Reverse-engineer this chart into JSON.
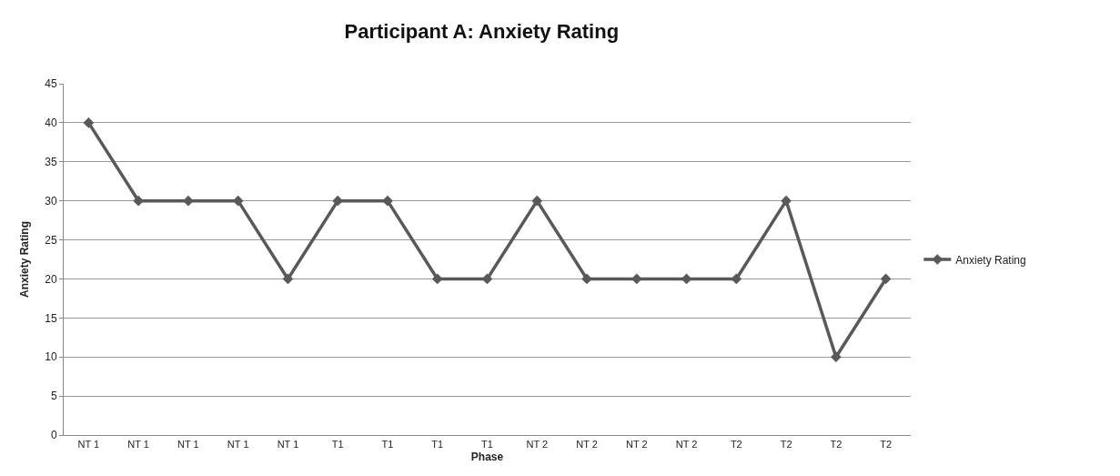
{
  "chart_data": {
    "type": "line",
    "title": "Participant A: Anxiety Rating",
    "xlabel": "Phase",
    "ylabel": "Anxiety Rating",
    "categories": [
      "NT 1",
      "NT 1",
      "NT 1",
      "NT 1",
      "NT 1",
      "T1",
      "T1",
      "T1",
      "T1",
      "NT 2",
      "NT 2",
      "NT 2",
      "NT 2",
      "T2",
      "T2",
      "T2",
      "T2"
    ],
    "series": [
      {
        "name": "Anxiety Rating",
        "color": "#595959",
        "values": [
          40,
          30,
          30,
          30,
          20,
          30,
          30,
          20,
          20,
          30,
          20,
          20,
          20,
          20,
          30,
          10,
          20
        ]
      }
    ],
    "ylim": [
      0,
      45
    ],
    "yticks": [
      0,
      5,
      10,
      15,
      20,
      25,
      30,
      35,
      40,
      45
    ],
    "grid": "y",
    "legend": "right",
    "marker": "diamond",
    "line_style": "solid"
  }
}
